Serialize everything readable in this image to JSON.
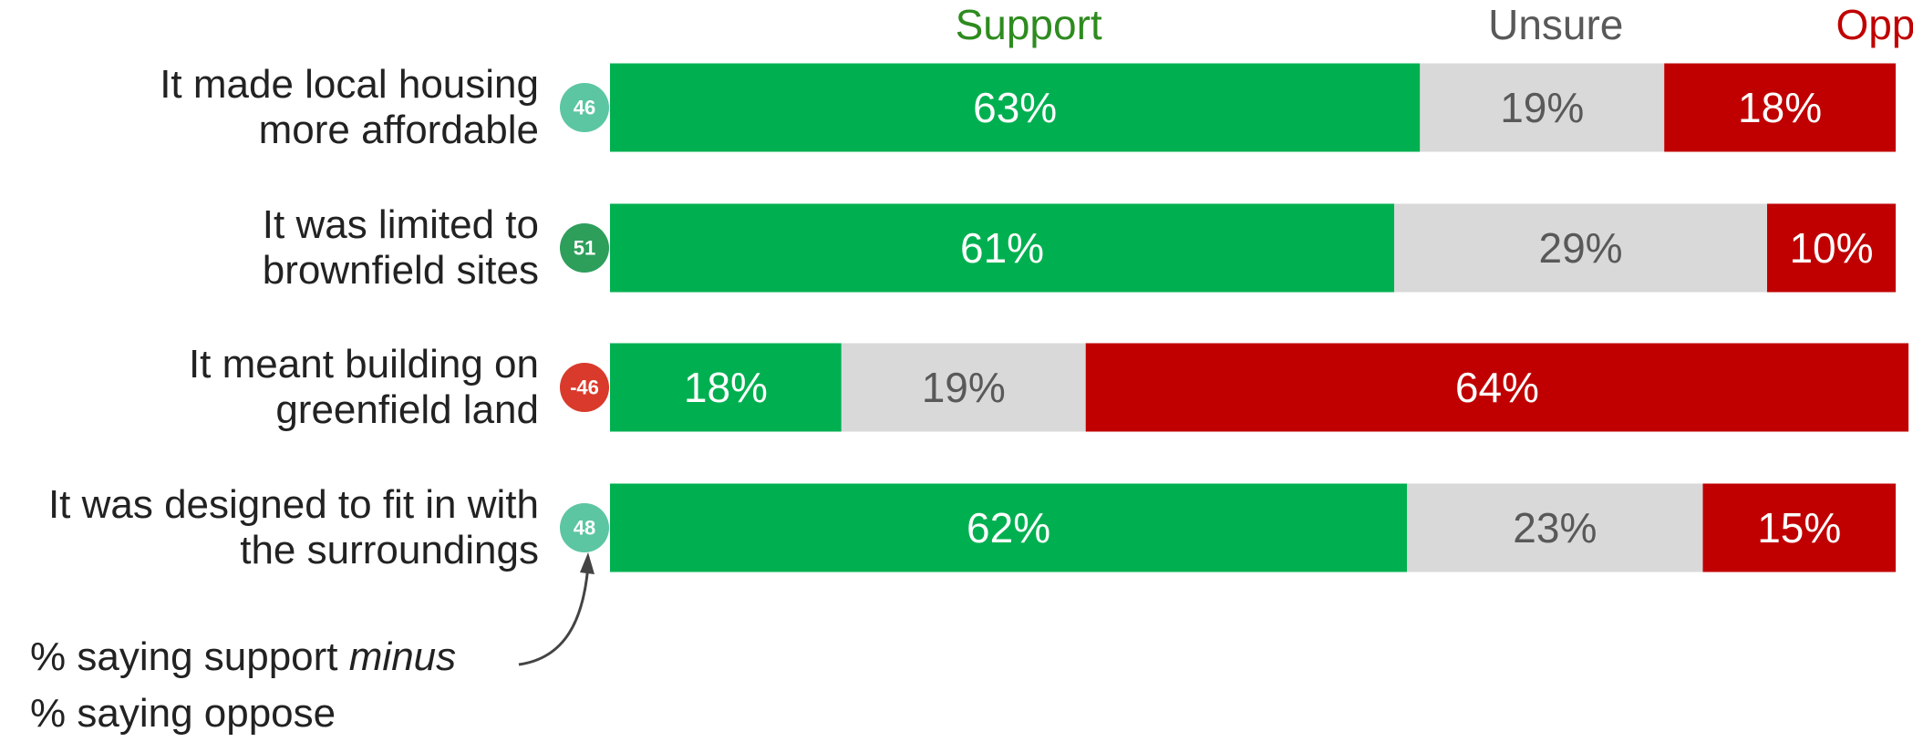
{
  "chart_data": {
    "type": "bar",
    "orientation": "horizontal",
    "stacked": true,
    "xlim": [
      0,
      100
    ],
    "categories": [
      "It made local housing\nmore affordable",
      "It was limited to\nbrownfield sites",
      "It meant building on\ngreenfield land",
      "It was designed to fit in with\nthe surroundings"
    ],
    "series": [
      {
        "name": "Support",
        "color": "#00b050",
        "text_color": "#ffffff",
        "values": [
          63,
          61,
          18,
          62
        ],
        "value_labels": [
          "63%",
          "61%",
          "18%",
          "62%"
        ]
      },
      {
        "name": "Unsure",
        "color": "#d9d9d9",
        "text_color": "#595959",
        "values": [
          19,
          29,
          19,
          23
        ],
        "value_labels": [
          "19%",
          "29%",
          "19%",
          "23%"
        ]
      },
      {
        "name": "Oppose",
        "color": "#c00000",
        "text_color": "#ffffff",
        "values": [
          18,
          10,
          64,
          15
        ],
        "value_labels": [
          "18%",
          "10%",
          "64%",
          "15%"
        ]
      }
    ],
    "legend_colors": [
      "#2e8b1f",
      "#595959",
      "#c00000"
    ],
    "net_values": [
      46,
      51,
      -46,
      48
    ],
    "net_colors": [
      "#5cc6a2",
      "#2e9e5b",
      "#d93a2b",
      "#5cc6a2"
    ],
    "annotation": [
      "% saying support",
      "minus",
      "% saying oppose"
    ]
  }
}
